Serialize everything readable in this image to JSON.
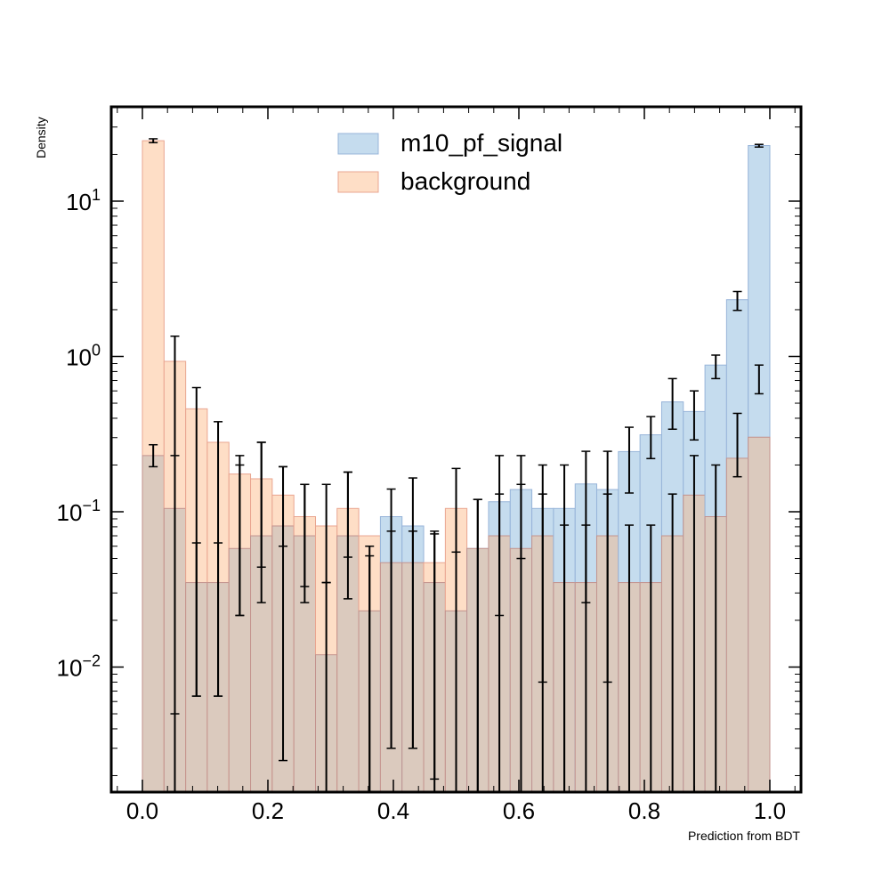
{
  "chart_data": {
    "type": "bar",
    "title": "",
    "xlabel": "Prediction from BDT",
    "ylabel": "Density",
    "xlim": [
      -0.05,
      1.05
    ],
    "ylim": [
      0.0017,
      35
    ],
    "yscale": "log",
    "grid": false,
    "legend_position": "top-center",
    "x_ticks": [
      0.0,
      0.2,
      0.4,
      0.6,
      0.8,
      1.0
    ],
    "x_tick_labels": [
      "0.0",
      "0.2",
      "0.4",
      "0.6",
      "0.8",
      "1.0"
    ],
    "y_ticks": [
      {
        "value": 0.01,
        "base": "10",
        "exp": "−2"
      },
      {
        "value": 0.1,
        "base": "10",
        "exp": "−1"
      },
      {
        "value": 1,
        "base": "10",
        "exp": "0"
      },
      {
        "value": 10,
        "base": "10",
        "exp": "1"
      }
    ],
    "bin_edges": [
      0.0,
      0.0345,
      0.069,
      0.1034,
      0.1379,
      0.1724,
      0.2069,
      0.2414,
      0.2759,
      0.3103,
      0.3448,
      0.3793,
      0.4138,
      0.4483,
      0.4828,
      0.5172,
      0.5517,
      0.5862,
      0.6207,
      0.6552,
      0.6897,
      0.7241,
      0.7586,
      0.7931,
      0.8276,
      0.8621,
      0.8966,
      0.931,
      0.9655,
      1.0
    ],
    "series": [
      {
        "name": "m10_pf_signal",
        "color": "#c5dcee",
        "edge": "#97b4d9",
        "values": [
          0.23,
          0.105,
          0.035,
          0.035,
          0.058,
          0.07,
          0.081,
          0.07,
          0.012,
          0.07,
          0.023,
          0.093,
          0.081,
          0.035,
          0.023,
          0.058,
          0.116,
          0.139,
          0.105,
          0.105,
          0.151,
          0.139,
          0.244,
          0.313,
          0.51,
          0.442,
          0.88,
          2.32,
          22.8
        ],
        "errors_low": [
          0.195,
          0.005,
          0.0065,
          0.0065,
          0.0215,
          0.026,
          0.0025,
          0.026,
          0.0001,
          0.0275,
          0.0001,
          0.003,
          0.003,
          0.0001,
          0.0001,
          0.0001,
          0.0215,
          0.05,
          0.008,
          0.0001,
          0.026,
          0.008,
          0.132,
          0.22,
          0.34,
          0.29,
          0.72,
          1.98,
          22.3
        ],
        "errors_high": [
          0.27,
          1.35,
          0.063,
          0.063,
          0.2,
          0.28,
          0.195,
          0.15,
          0.035,
          0.18,
          0.052,
          0.14,
          0.165,
          0.075,
          0.055,
          0.12,
          0.23,
          0.23,
          0.2,
          0.2,
          0.245,
          0.245,
          0.35,
          0.41,
          0.72,
          0.6,
          1.02,
          2.62,
          23.2
        ]
      },
      {
        "name": "background",
        "color": "#fedec6",
        "edge": "#e9a590",
        "values": [
          24.5,
          0.93,
          0.46,
          0.28,
          0.175,
          0.163,
          0.128,
          0.093,
          0.081,
          0.105,
          0.07,
          0.047,
          0.047,
          0.047,
          0.105,
          0.058,
          0.07,
          0.058,
          0.07,
          0.035,
          0.035,
          0.07,
          0.035,
          0.035,
          0.07,
          0.128,
          0.093,
          0.221,
          0.302
        ],
        "errors_low": [
          23.8,
          0.0001,
          0.0065,
          0.0065,
          0.0215,
          0.044,
          0.06,
          0.033,
          0.035,
          0.051,
          0.0001,
          0.003,
          0.003,
          0.0019,
          0.0001,
          0.0001,
          0.0001,
          0.0001,
          0.0001,
          0.0001,
          0.0001,
          0.0001,
          0.0001,
          0.0001,
          0.0001,
          0.0001,
          0.0001,
          0.168,
          0.575
        ],
        "errors_high": [
          25.2,
          0.23,
          0.63,
          0.38,
          0.23,
          0.28,
          0.195,
          0.15,
          0.15,
          0.18,
          0.06,
          0.075,
          0.075,
          0.072,
          0.19,
          0.12,
          0.13,
          0.15,
          0.13,
          0.082,
          0.082,
          0.13,
          0.082,
          0.082,
          0.13,
          0.23,
          0.2,
          0.43,
          0.88
        ]
      }
    ],
    "overlay_color": "#dbcabe",
    "overlay_edge": "#c3938e"
  }
}
